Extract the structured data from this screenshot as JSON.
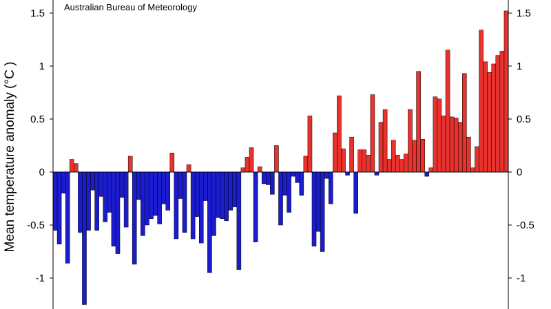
{
  "chart_data": {
    "type": "bar",
    "title": "",
    "source": "Australian Bureau of Meteorology",
    "ylabel": "Mean temperature anomaly (°C )",
    "xlabel": "",
    "ylim": [
      -1.3,
      1.6
    ],
    "yticks": [
      1.5,
      1,
      0.5,
      0,
      -0.5,
      -1
    ],
    "ytick_labels": [
      "1.5",
      "1",
      "0.5",
      "0",
      "-0.5",
      "-1"
    ],
    "grid": false,
    "legend": "none",
    "colors": {
      "positive": "#e8322d",
      "negative": "#1c1ccf",
      "edge": "#000000"
    },
    "values": [
      -0.55,
      -0.68,
      -0.2,
      -0.86,
      0.12,
      0.08,
      -0.57,
      -1.25,
      -0.55,
      -0.17,
      -0.55,
      -0.23,
      -0.47,
      -0.38,
      -0.7,
      -0.77,
      -0.24,
      -0.52,
      0.15,
      -0.87,
      -0.26,
      -0.6,
      -0.5,
      -0.44,
      -0.41,
      -0.49,
      -0.3,
      -0.36,
      0.18,
      -0.63,
      -0.25,
      -0.57,
      0.07,
      -0.63,
      -0.42,
      -0.67,
      -0.27,
      -0.95,
      -0.6,
      -0.43,
      -0.44,
      -0.46,
      -0.36,
      -0.33,
      -0.92,
      0.04,
      0.14,
      0.23,
      -0.66,
      0.05,
      -0.11,
      -0.12,
      -0.21,
      0.25,
      -0.5,
      -0.22,
      -0.38,
      -0.04,
      -0.1,
      -0.22,
      0.15,
      0.53,
      -0.7,
      -0.56,
      -0.75,
      -0.06,
      -0.3,
      0.37,
      0.72,
      0.22,
      -0.03,
      0.33,
      -0.39,
      0.21,
      0.21,
      0.16,
      0.73,
      -0.03,
      0.47,
      0.59,
      0.12,
      0.3,
      0.16,
      0.12,
      0.17,
      0.59,
      0.3,
      0.95,
      0.31,
      -0.04,
      0.04,
      0.71,
      0.69,
      0.53,
      1.15,
      0.52,
      0.51,
      0.47,
      0.93,
      0.33,
      0.04,
      0.24,
      1.34,
      1.04,
      0.94,
      1.02,
      1.1,
      1.14,
      1.52
    ]
  }
}
